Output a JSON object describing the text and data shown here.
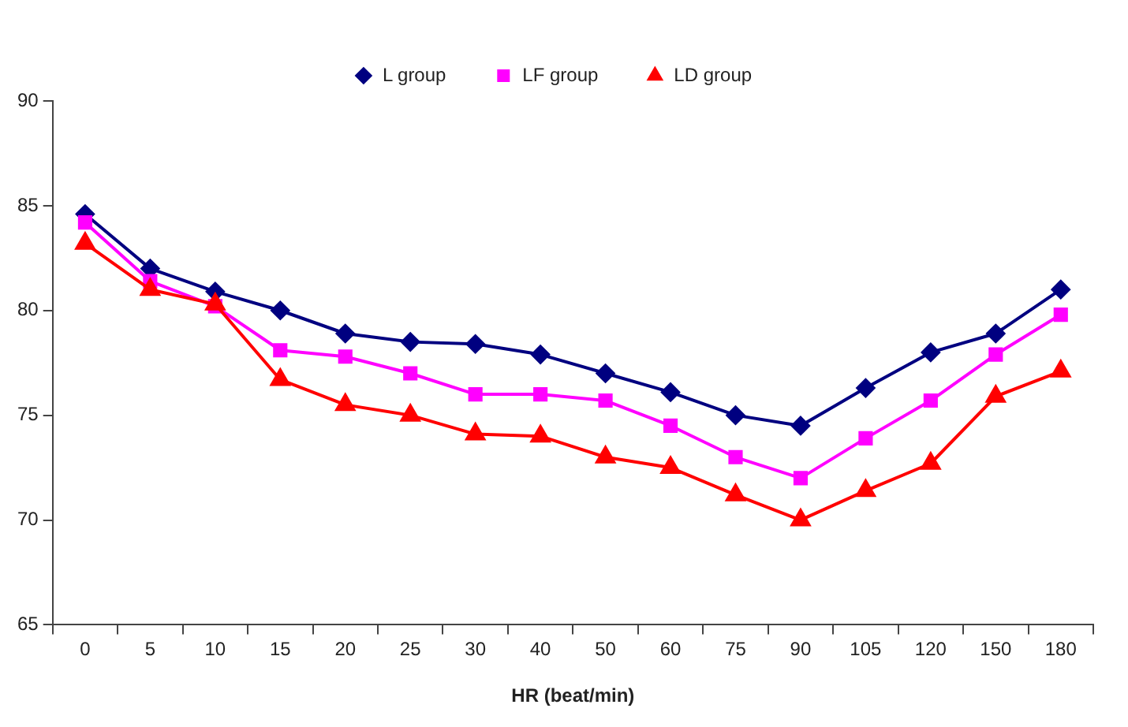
{
  "chart_data": {
    "type": "line",
    "xlabel": "HR (beat/min)",
    "categories": [
      "0",
      "5",
      "10",
      "15",
      "20",
      "25",
      "30",
      "40",
      "50",
      "60",
      "75",
      "90",
      "105",
      "120",
      "150",
      "180"
    ],
    "series": [
      {
        "name": "L group",
        "color": "#000080",
        "marker": "diamond",
        "values": [
          84.6,
          82,
          80.9,
          80,
          78.9,
          78.5,
          78.4,
          77.9,
          77,
          76.1,
          75,
          74.5,
          76.3,
          78,
          78.9,
          81
        ]
      },
      {
        "name": "LF group",
        "color": "#ff00ff",
        "marker": "square",
        "values": [
          84.2,
          81.4,
          80.2,
          78.1,
          77.8,
          77,
          76,
          76,
          75.7,
          74.5,
          73,
          72,
          73.9,
          75.7,
          77.9,
          79.8
        ]
      },
      {
        "name": "LD group",
        "color": "#ff0000",
        "marker": "triangle",
        "values": [
          83.2,
          81,
          80.3,
          76.7,
          75.5,
          75,
          74.1,
          74,
          73,
          72.5,
          71.2,
          70,
          71.4,
          72.7,
          75.9,
          77.1
        ]
      }
    ],
    "ylim": [
      65,
      90
    ],
    "yticks": [
      65,
      70,
      75,
      80,
      85,
      90
    ],
    "grid": false,
    "legend": "top",
    "line_style": "solid"
  }
}
